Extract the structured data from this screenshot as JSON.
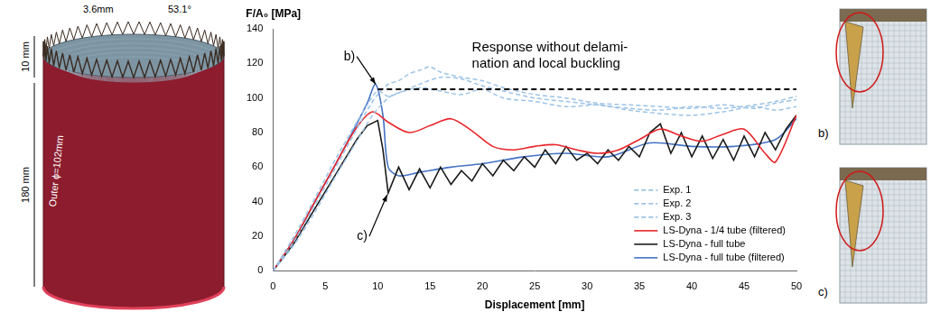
{
  "chart_data": {
    "type": "line",
    "y_label": "F/A₀ [MPa]",
    "x_label": "Displacement [mm]",
    "xlim": [
      0,
      50
    ],
    "xticks": [
      0,
      5,
      10,
      15,
      20,
      25,
      30,
      35,
      40,
      45,
      50
    ],
    "ylim": [
      0,
      140
    ],
    "yticks": [
      0,
      20,
      40,
      60,
      80,
      100,
      120,
      140
    ],
    "grid": false,
    "legend": "lower right",
    "series": [
      {
        "name": "Exp. 1",
        "color": "#9dc3e6",
        "line_style": "dashed",
        "x": [
          0,
          2,
          4,
          6,
          8,
          9,
          10,
          11,
          12,
          13,
          14,
          15,
          16,
          18,
          20,
          22,
          25,
          28,
          31,
          34,
          37,
          40,
          43,
          46,
          48,
          50
        ],
        "values": [
          0,
          17,
          38,
          60,
          82,
          93,
          102,
          108,
          110,
          114,
          116,
          118,
          115,
          112,
          110,
          106,
          102,
          100,
          97,
          96,
          95,
          94,
          96,
          94,
          97,
          99
        ]
      },
      {
        "name": "Exp. 2",
        "color": "#9dc3e6",
        "line_style": "dashed",
        "x": [
          0,
          2,
          4,
          6,
          8,
          9,
          10,
          11,
          12,
          14,
          16,
          18,
          20,
          22,
          25,
          28,
          31,
          34,
          37,
          40,
          43,
          46,
          48,
          50
        ],
        "values": [
          0,
          20,
          42,
          65,
          86,
          96,
          104,
          101,
          103,
          108,
          112,
          111,
          107,
          104,
          100,
          98,
          96,
          94,
          93,
          95,
          94,
          96,
          98,
          101
        ]
      },
      {
        "name": "Exp. 3",
        "color": "#9dc3e6",
        "line_style": "dashed",
        "x": [
          0,
          2,
          4,
          6,
          8,
          9.5,
          11,
          12,
          14,
          16,
          18,
          20,
          22,
          25,
          28,
          31,
          34,
          37,
          40,
          43,
          46,
          48,
          50
        ],
        "values": [
          0,
          15,
          34,
          55,
          75,
          90,
          100,
          103,
          106,
          104,
          102,
          105,
          100,
          98,
          95,
          96,
          93,
          91,
          90,
          92,
          95,
          93,
          95
        ]
      },
      {
        "name": "LS-Dyna - 1/4 tube (filtered)",
        "color": "#e8262a",
        "line_style": "solid",
        "x": [
          0,
          2,
          4,
          6,
          8,
          9.5,
          11,
          13,
          15,
          17,
          19,
          21,
          23,
          25,
          27,
          29,
          31,
          33,
          35,
          37,
          39,
          41,
          43,
          45,
          47,
          48,
          50
        ],
        "values": [
          0,
          18,
          40,
          62,
          83,
          92,
          86,
          80,
          84,
          88,
          81,
          72,
          70,
          72,
          73,
          70,
          68,
          70,
          76,
          82,
          78,
          75,
          79,
          82,
          68,
          63,
          90
        ]
      },
      {
        "name": "LS-Dyna - full tube",
        "color": "#1a1a1a",
        "line_style": "solid",
        "x": [
          0,
          2,
          4,
          6,
          8,
          9,
          10,
          10.5,
          11,
          12,
          13,
          14,
          15,
          16,
          17,
          18,
          19,
          20,
          21,
          22,
          23,
          24,
          25,
          26,
          27,
          28,
          29,
          30,
          31,
          32,
          33,
          34,
          35,
          36,
          37,
          38,
          39,
          40,
          41,
          42,
          43,
          44,
          45,
          46,
          47,
          48,
          49,
          50
        ],
        "values": [
          0,
          16,
          36,
          56,
          76,
          84,
          87,
          70,
          45,
          60,
          47,
          59,
          48,
          60,
          50,
          58,
          52,
          62,
          55,
          64,
          58,
          66,
          60,
          70,
          62,
          72,
          64,
          68,
          62,
          70,
          64,
          72,
          66,
          80,
          85,
          68,
          80,
          66,
          78,
          65,
          76,
          64,
          78,
          66,
          80,
          70,
          82,
          90
        ]
      },
      {
        "name": "LS-Dyna - full tube (filtered)",
        "color": "#4472c4",
        "line_style": "solid",
        "x": [
          0,
          2,
          4,
          6,
          8,
          9,
          9.8,
          10.5,
          11,
          12,
          14,
          17,
          20,
          24,
          28,
          32,
          36,
          40,
          44,
          48,
          50
        ],
        "values": [
          0,
          18,
          40,
          62,
          85,
          97,
          108,
          90,
          60,
          55,
          57,
          60,
          62,
          66,
          68,
          66,
          74,
          72,
          72,
          76,
          88
        ]
      }
    ],
    "reference_line": {
      "y": 105,
      "x": [
        10,
        50
      ],
      "line_style": "dashed",
      "color": "#000000",
      "text": [
        "Response without delami-",
        "nation and local buckling"
      ],
      "text_x": 19,
      "text_y": 129
    },
    "annotations": [
      {
        "text": "b)",
        "x": 8,
        "y": 124,
        "target": [
          9.8,
          108
        ]
      },
      {
        "text": "c)",
        "x": 9.2,
        "y": 20,
        "target": [
          10.9,
          44
        ]
      }
    ]
  },
  "tube_figure": {
    "labels": {
      "tooth_width": "3.6mm",
      "tooth_angle": "53.1°",
      "tooth_height": "10 mm",
      "length": "180 mm",
      "diameter": "Outer ϕ=102mm"
    }
  },
  "detail_figures": [
    "b)",
    "c)"
  ]
}
